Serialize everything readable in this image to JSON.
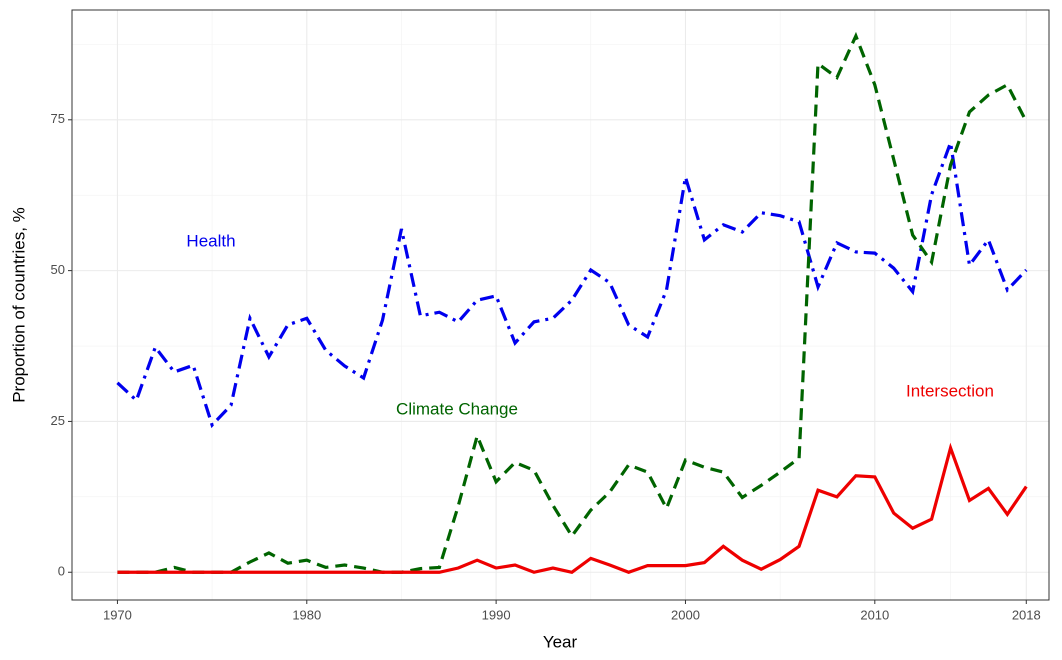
{
  "chart_data": {
    "type": "line",
    "xlabel": "Year",
    "ylabel": "Proportion of countries, %",
    "x": [
      1970,
      1971,
      1972,
      1973,
      1974,
      1975,
      1976,
      1977,
      1978,
      1979,
      1980,
      1981,
      1982,
      1983,
      1984,
      1985,
      1986,
      1987,
      1988,
      1989,
      1990,
      1991,
      1992,
      1993,
      1994,
      1995,
      1996,
      1997,
      1998,
      1999,
      2000,
      2001,
      2002,
      2003,
      2004,
      2005,
      2006,
      2007,
      2008,
      2009,
      2010,
      2011,
      2012,
      2013,
      2014,
      2015,
      2016,
      2017,
      2018
    ],
    "series": [
      {
        "name": "Health",
        "color": "#0000ee",
        "linestyle": "dotdash",
        "values": [
          31.4,
          28.5,
          37.3,
          33.2,
          34.3,
          24.4,
          27.7,
          42.1,
          35.7,
          41,
          42.1,
          36.8,
          34.2,
          32.2,
          41.8,
          56.9,
          42.5,
          43.1,
          41.5,
          45.1,
          45.8,
          38,
          41.5,
          42.1,
          45.1,
          50.1,
          48,
          41,
          39,
          46.8,
          65.5,
          55.1,
          57.6,
          56.4,
          59.6,
          59.1,
          58.1,
          47.3,
          54.6,
          53.1,
          52.9,
          50.4,
          46.5,
          62.6,
          71.2,
          50.9,
          55.1,
          46.8,
          50.1
        ]
      },
      {
        "name": "Climate Change",
        "color": "#006400",
        "linestyle": "dashed",
        "values": [
          0,
          0,
          0,
          0.8,
          0,
          0,
          0,
          1.7,
          3.2,
          1.5,
          2,
          0.8,
          1.2,
          0.7,
          0,
          0,
          0.6,
          0.8,
          11,
          22.6,
          15,
          18.2,
          16.9,
          11.1,
          6,
          10.3,
          13.3,
          17.8,
          16.6,
          10.6,
          18.6,
          17.4,
          16.6,
          12.4,
          14.4,
          16.6,
          18.9,
          84.3,
          82,
          88.9,
          80.8,
          68.4,
          55.9,
          51.4,
          67.5,
          76.3,
          79.1,
          80.8,
          74.7
        ]
      },
      {
        "name": "Intersection",
        "color": "#ee0000",
        "linestyle": "solid",
        "values": [
          0,
          0,
          0,
          0,
          0,
          0,
          0,
          0,
          0,
          0,
          0,
          0,
          0,
          0,
          0,
          0,
          0,
          0,
          0.7,
          2,
          0.7,
          1.2,
          0,
          0.7,
          0,
          2.3,
          1.2,
          0,
          1.1,
          1.1,
          1.1,
          1.6,
          4.3,
          2,
          0.5,
          2.1,
          4.3,
          13.6,
          12.5,
          16,
          15.8,
          9.8,
          7.3,
          8.8,
          20.6,
          11.9,
          13.9,
          9.6,
          14.2
        ]
      }
    ],
    "xlim": [
      1967.6,
      2019.2
    ],
    "xticks": [
      1970,
      1980,
      1990,
      2000,
      2010,
      2018
    ],
    "ylim": [
      -4.6,
      93.2
    ],
    "yticks": [
      0,
      25,
      50,
      75
    ],
    "grid": true
  }
}
